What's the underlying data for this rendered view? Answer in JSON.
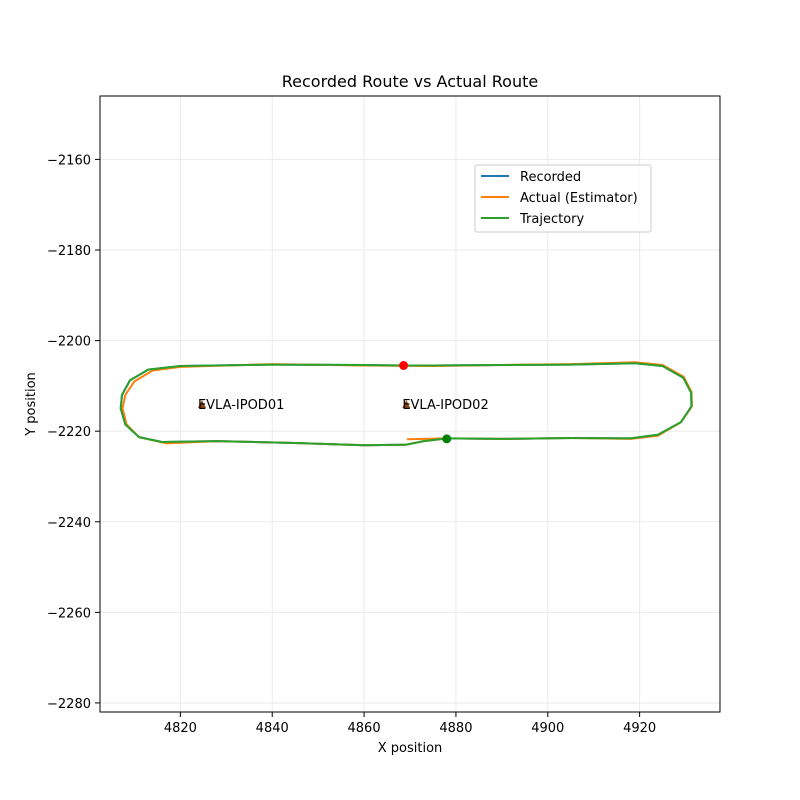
{
  "chart_data": {
    "type": "line",
    "title": "Recorded Route vs Actual Route",
    "xlabel": "X position",
    "ylabel": "Y position",
    "xlim": [
      4802.5,
      4937.5
    ],
    "ylim": [
      -2282,
      -2146
    ],
    "xticks": [
      4820,
      4840,
      4860,
      4880,
      4900,
      4920
    ],
    "yticks": [
      -2160,
      -2180,
      -2200,
      -2220,
      -2240,
      -2260,
      -2280
    ],
    "grid": true,
    "legend_position": "upper-right",
    "series": [
      {
        "name": "Recorded",
        "color": "#1f77b4",
        "points": [
          [
            4868.6,
            -2205.5
          ],
          [
            4860,
            -2205.4
          ],
          [
            4840,
            -2205.3
          ],
          [
            4820,
            -2205.6
          ],
          [
            4813,
            -2206.4
          ],
          [
            4809,
            -2208.8
          ],
          [
            4807.3,
            -2212
          ],
          [
            4807,
            -2215
          ],
          [
            4808,
            -2218.5
          ],
          [
            4811,
            -2221.3
          ],
          [
            4816,
            -2222.4
          ],
          [
            4828,
            -2222.2
          ],
          [
            4845,
            -2222.6
          ],
          [
            4860,
            -2223.1
          ],
          [
            4869,
            -2223
          ],
          [
            4873,
            -2222.2
          ],
          [
            4878,
            -2221.6
          ],
          [
            4890,
            -2221.7
          ],
          [
            4905,
            -2221.5
          ],
          [
            4918,
            -2221.6
          ],
          [
            4924,
            -2220.8
          ],
          [
            4929,
            -2218
          ],
          [
            4931.3,
            -2214.5
          ],
          [
            4931.2,
            -2211.5
          ],
          [
            4929.5,
            -2208.2
          ],
          [
            4925,
            -2205.6
          ],
          [
            4919,
            -2205
          ],
          [
            4905,
            -2205.3
          ],
          [
            4890,
            -2205.4
          ],
          [
            4875,
            -2205.5
          ],
          [
            4868.6,
            -2205.5
          ]
        ]
      },
      {
        "name": "Actual (Estimator)",
        "color": "#ff7f0e",
        "points": [
          [
            4869.5,
            -2221.8
          ],
          [
            4873,
            -2221.7
          ],
          [
            4878,
            -2221.6
          ],
          [
            4890,
            -2221.7
          ],
          [
            4905,
            -2221.5
          ],
          [
            4918,
            -2221.7
          ],
          [
            4924,
            -2221
          ],
          [
            4929,
            -2218
          ],
          [
            4931.4,
            -2214.5
          ],
          [
            4931.3,
            -2211.3
          ],
          [
            4929.6,
            -2208
          ],
          [
            4925,
            -2205.4
          ],
          [
            4919,
            -2204.8
          ],
          [
            4905,
            -2205.2
          ],
          [
            4890,
            -2205.4
          ],
          [
            4875,
            -2205.6
          ],
          [
            4860,
            -2205.5
          ],
          [
            4840,
            -2205.2
          ],
          [
            4820,
            -2205.8
          ],
          [
            4814,
            -2206.6
          ],
          [
            4810,
            -2209
          ],
          [
            4808,
            -2212
          ],
          [
            4807.4,
            -2215
          ],
          [
            4808.3,
            -2218.5
          ],
          [
            4811,
            -2221.3
          ],
          [
            4817,
            -2222.7
          ],
          [
            4828,
            -2222.2
          ],
          [
            4845,
            -2222.6
          ],
          [
            4860,
            -2223.1
          ],
          [
            4869,
            -2223
          ],
          [
            4873,
            -2222.2
          ],
          [
            4878,
            -2221.6
          ]
        ]
      },
      {
        "name": "Trajectory",
        "color": "#2ca02c",
        "points": [
          [
            4868.6,
            -2205.5
          ],
          [
            4860,
            -2205.4
          ],
          [
            4840,
            -2205.3
          ],
          [
            4820,
            -2205.6
          ],
          [
            4813,
            -2206.4
          ],
          [
            4809,
            -2208.8
          ],
          [
            4807.3,
            -2212
          ],
          [
            4807,
            -2215
          ],
          [
            4808,
            -2218.5
          ],
          [
            4811,
            -2221.3
          ],
          [
            4816,
            -2222.4
          ],
          [
            4828,
            -2222.2
          ],
          [
            4845,
            -2222.6
          ],
          [
            4860,
            -2223.1
          ],
          [
            4869,
            -2223
          ],
          [
            4873,
            -2222.2
          ],
          [
            4878,
            -2221.6
          ],
          [
            4890,
            -2221.7
          ],
          [
            4905,
            -2221.5
          ],
          [
            4918,
            -2221.6
          ],
          [
            4924,
            -2220.8
          ],
          [
            4929,
            -2218
          ],
          [
            4931.3,
            -2214.5
          ],
          [
            4931.2,
            -2211.5
          ],
          [
            4929.5,
            -2208.2
          ],
          [
            4925,
            -2205.6
          ],
          [
            4919,
            -2205
          ],
          [
            4905,
            -2205.3
          ],
          [
            4890,
            -2205.4
          ],
          [
            4875,
            -2205.5
          ],
          [
            4868.6,
            -2205.5
          ]
        ]
      }
    ],
    "markers": [
      {
        "kind": "dot",
        "color": "#ff0000",
        "x": 4868.6,
        "y": -2205.5
      },
      {
        "kind": "dot",
        "color": "#008000",
        "x": 4878,
        "y": -2221.7
      }
    ],
    "annotations": [
      {
        "label": "EVLA-IPOD01",
        "x": 4824.7,
        "y": -2214,
        "marker_color": "#8b4513"
      },
      {
        "label": "EVLA-IPOD02",
        "x": 4869.2,
        "y": -2214,
        "marker_color": "#8b4513"
      }
    ]
  }
}
